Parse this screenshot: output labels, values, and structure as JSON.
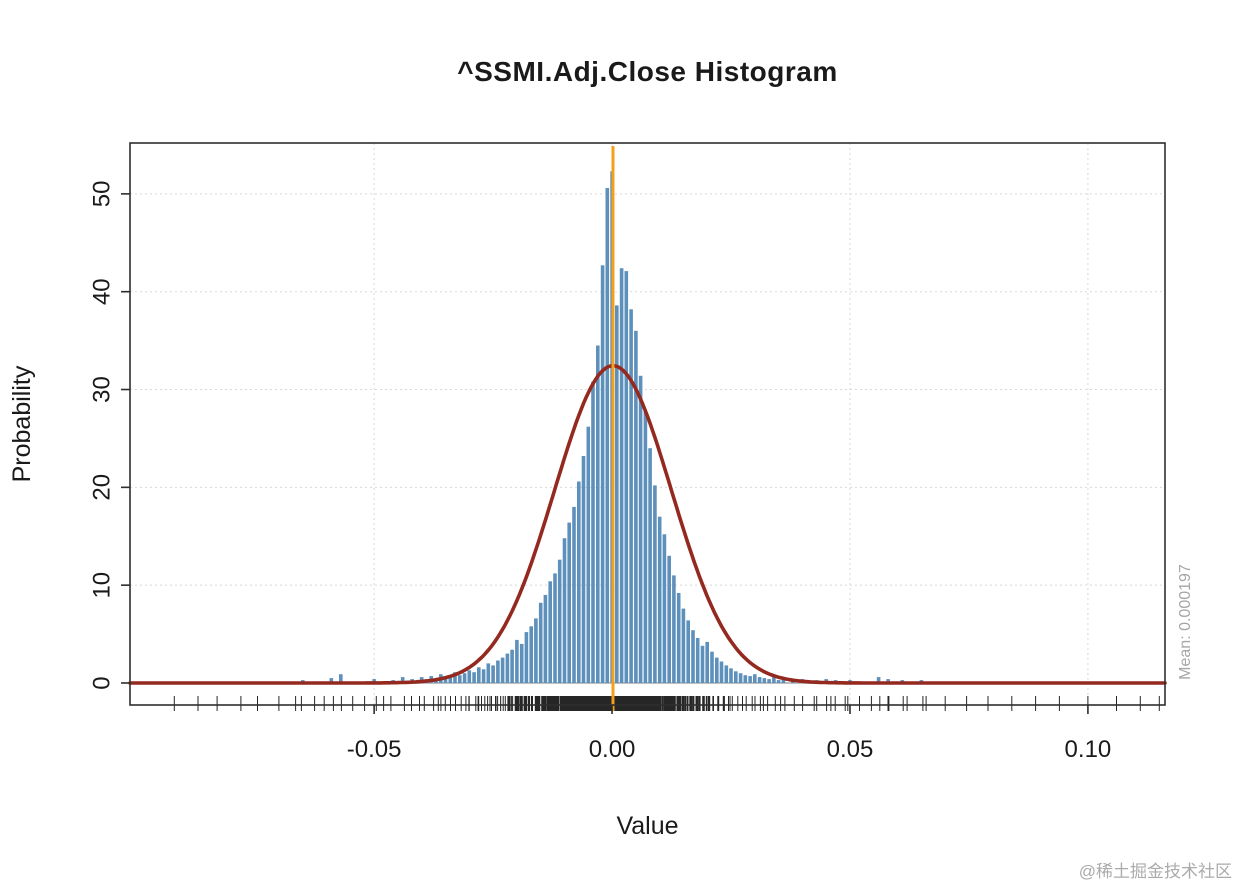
{
  "watermark": {
    "text": "@稀土掘金技术社区"
  },
  "colors": {
    "bar": "#5E90BC",
    "curve": "#94291F",
    "mean_line": "#F5A01B",
    "grid": "#D8D8D8",
    "zero_line": "#BFBFBF",
    "axis": "#2E2E2E",
    "muted_text": "#A6A6A6"
  },
  "chart_data": {
    "type": "bar",
    "variant": "histogram-with-density-curve",
    "title": "^SSMI.Adj.Close Histogram",
    "xlabel": "Value",
    "ylabel": "Probability",
    "xlim": [
      -0.1013,
      0.1162
    ],
    "ylim": [
      -2.25,
      55.2
    ],
    "x_ticks": [
      -0.05,
      0.0,
      0.05,
      0.1
    ],
    "x_tick_labels": [
      "-0.05",
      "0.00",
      "0.05",
      "0.10"
    ],
    "y_ticks": [
      0,
      10,
      20,
      30,
      40,
      50
    ],
    "y_tick_labels": [
      "0",
      "10",
      "20",
      "30",
      "40",
      "50"
    ],
    "grid": true,
    "bin_width": 0.001,
    "bins": [
      [
        -0.065,
        0.3
      ],
      [
        -0.059,
        0.5
      ],
      [
        -0.057,
        0.9
      ],
      [
        -0.05,
        0.4
      ],
      [
        -0.046,
        0.3
      ],
      [
        -0.044,
        0.6
      ],
      [
        -0.042,
        0.4
      ],
      [
        -0.04,
        0.6
      ],
      [
        -0.039,
        0.4
      ],
      [
        -0.038,
        0.7
      ],
      [
        -0.037,
        0.5
      ],
      [
        -0.036,
        0.9
      ],
      [
        -0.035,
        0.7
      ],
      [
        -0.034,
        0.6
      ],
      [
        -0.033,
        1.1
      ],
      [
        -0.032,
        0.8
      ],
      [
        -0.031,
        1.0
      ],
      [
        -0.03,
        1.3
      ],
      [
        -0.029,
        1.1
      ],
      [
        -0.028,
        1.6
      ],
      [
        -0.027,
        1.4
      ],
      [
        -0.026,
        2.0
      ],
      [
        -0.025,
        1.8
      ],
      [
        -0.024,
        2.3
      ],
      [
        -0.023,
        2.6
      ],
      [
        -0.022,
        3.0
      ],
      [
        -0.021,
        3.4
      ],
      [
        -0.02,
        4.4
      ],
      [
        -0.019,
        4.0
      ],
      [
        -0.018,
        5.2
      ],
      [
        -0.017,
        5.8
      ],
      [
        -0.016,
        6.6
      ],
      [
        -0.015,
        8.2
      ],
      [
        -0.014,
        9.0
      ],
      [
        -0.013,
        10.4
      ],
      [
        -0.012,
        11.2
      ],
      [
        -0.011,
        12.6
      ],
      [
        -0.01,
        14.8
      ],
      [
        -0.009,
        16.4
      ],
      [
        -0.008,
        18.0
      ],
      [
        -0.007,
        20.6
      ],
      [
        -0.006,
        23.2
      ],
      [
        -0.005,
        26.2
      ],
      [
        -0.004,
        30.8
      ],
      [
        -0.003,
        34.5
      ],
      [
        -0.002,
        42.7
      ],
      [
        -0.001,
        50.6
      ],
      [
        0.0,
        52.3
      ],
      [
        0.001,
        38.6
      ],
      [
        0.002,
        42.4
      ],
      [
        0.003,
        42.1
      ],
      [
        0.004,
        38.2
      ],
      [
        0.005,
        36.0
      ],
      [
        0.006,
        31.4
      ],
      [
        0.007,
        27.8
      ],
      [
        0.008,
        24.0
      ],
      [
        0.009,
        20.2
      ],
      [
        0.01,
        17.0
      ],
      [
        0.011,
        15.2
      ],
      [
        0.012,
        13.0
      ],
      [
        0.013,
        11.0
      ],
      [
        0.014,
        9.2
      ],
      [
        0.015,
        7.6
      ],
      [
        0.016,
        6.4
      ],
      [
        0.017,
        5.4
      ],
      [
        0.018,
        4.6
      ],
      [
        0.019,
        3.8
      ],
      [
        0.02,
        4.2
      ],
      [
        0.021,
        3.2
      ],
      [
        0.022,
        2.6
      ],
      [
        0.023,
        2.2
      ],
      [
        0.024,
        1.8
      ],
      [
        0.025,
        1.5
      ],
      [
        0.026,
        1.2
      ],
      [
        0.027,
        1.0
      ],
      [
        0.028,
        0.8
      ],
      [
        0.029,
        0.7
      ],
      [
        0.03,
        0.9
      ],
      [
        0.031,
        0.6
      ],
      [
        0.032,
        0.5
      ],
      [
        0.033,
        0.4
      ],
      [
        0.034,
        0.6
      ],
      [
        0.035,
        0.3
      ],
      [
        0.036,
        0.4
      ],
      [
        0.038,
        0.3
      ],
      [
        0.04,
        0.4
      ],
      [
        0.043,
        0.3
      ],
      [
        0.045,
        0.4
      ],
      [
        0.047,
        0.3
      ],
      [
        0.05,
        0.3
      ],
      [
        0.056,
        0.6
      ],
      [
        0.058,
        0.4
      ],
      [
        0.061,
        0.3
      ],
      [
        0.065,
        0.3
      ]
    ],
    "density_curve": {
      "shape": "normal",
      "mean": 0.000197,
      "sd": 0.0123,
      "peak": 32.4
    },
    "mean_line": {
      "x": 0.000197,
      "label": "Mean: 0.000197"
    },
    "rug": true,
    "rug_extra": [
      -0.092,
      -0.087,
      -0.083,
      -0.078,
      -0.0745,
      -0.07,
      -0.0665,
      -0.0625,
      -0.0605,
      -0.0545,
      -0.052,
      -0.048,
      0.043,
      0.046,
      0.049,
      0.052,
      0.0545,
      0.058,
      0.062,
      0.066,
      0.07,
      0.0745,
      0.079,
      0.084,
      0.089,
      0.094,
      0.1,
      0.106,
      0.111,
      0.115
    ]
  }
}
